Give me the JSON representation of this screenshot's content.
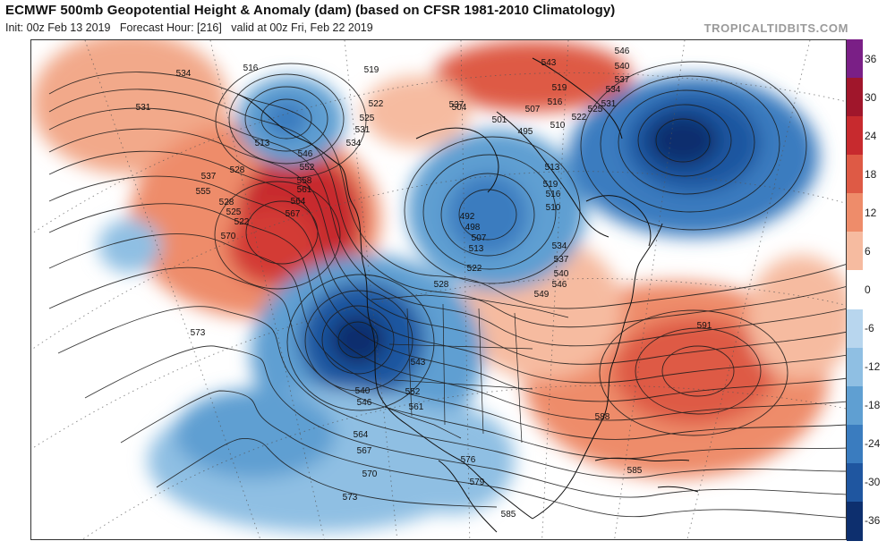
{
  "header": {
    "title": "ECMWF 500mb Geopotential Height & Anomaly (dam) (based on CFSR 1981-2010 Climatology)",
    "init": "Init: 00z Feb 13 2019",
    "forecast_hour": "Forecast Hour: [216]",
    "valid": "valid at 00z Fri, Feb 22 2019",
    "brand": "TROPICALTIDBITS.COM"
  },
  "colorbar": {
    "labels": [
      "36",
      "30",
      "24",
      "18",
      "12",
      "6",
      "0",
      "-6",
      "-12",
      "-18",
      "-24",
      "-30",
      "-36"
    ],
    "colors": [
      "#7a1f86",
      "#a0162b",
      "#c72a2e",
      "#de5a45",
      "#ee8c6a",
      "#f6bba0",
      "#ffffff",
      "#b8d6ee",
      "#8fbfe3",
      "#5f9fd2",
      "#3a7cbf",
      "#1f56a0",
      "#0d2f6e"
    ]
  },
  "map": {
    "contour_labels": [
      "531",
      "534",
      "516",
      "513",
      "519",
      "522",
      "525",
      "528",
      "531",
      "534",
      "537",
      "543",
      "546",
      "540",
      "537",
      "534",
      "531",
      "525",
      "522",
      "519",
      "516",
      "510",
      "504",
      "501",
      "495",
      "507",
      "513",
      "519",
      "516",
      "510",
      "546",
      "552",
      "558",
      "561",
      "564",
      "567",
      "570",
      "555",
      "537",
      "528",
      "525",
      "522",
      "492",
      "498",
      "507",
      "513",
      "522",
      "528",
      "534",
      "537",
      "540",
      "546",
      "549",
      "591",
      "573",
      "543",
      "552",
      "561",
      "588",
      "564",
      "567",
      "570",
      "573",
      "576",
      "579",
      "585",
      "585",
      "540",
      "546"
    ]
  }
}
